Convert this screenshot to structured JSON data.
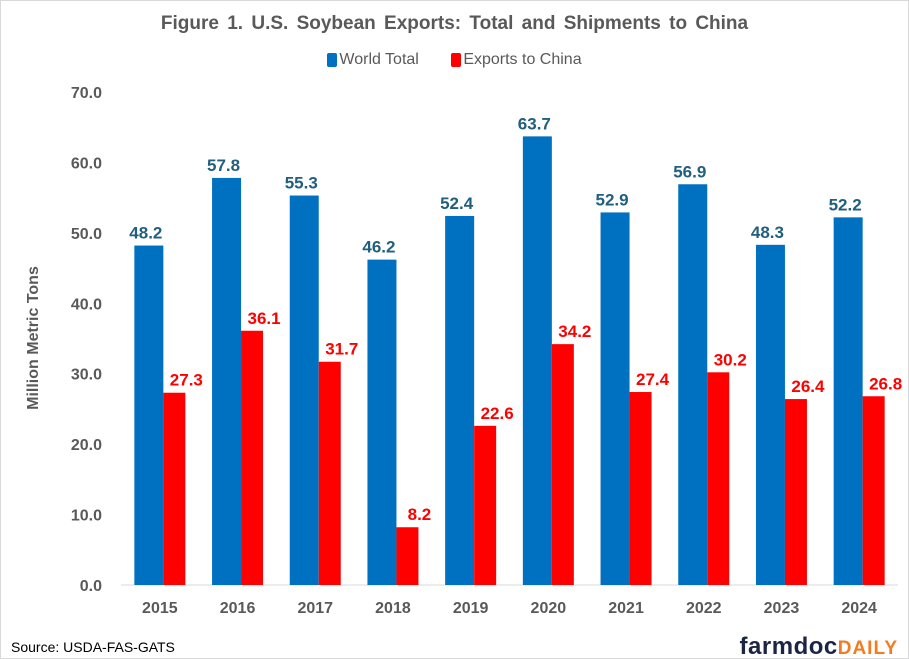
{
  "chart_data": {
    "type": "bar",
    "title": "Figure 1. U.S. Soybean Exports: Total and Shipments to China",
    "ylabel": "Million Metric Tons",
    "xlabel": "",
    "categories": [
      "2015",
      "2016",
      "2017",
      "2018",
      "2019",
      "2020",
      "2021",
      "2022",
      "2023",
      "2024"
    ],
    "series": [
      {
        "name": "World Total",
        "color": "#0070C0",
        "label_color": "#215F7E",
        "values": [
          48.2,
          57.8,
          55.3,
          46.2,
          52.4,
          63.7,
          52.9,
          56.9,
          48.3,
          52.2
        ]
      },
      {
        "name": "Exports to China",
        "color": "#FF0000",
        "label_color": "#FF0000",
        "values": [
          27.3,
          36.1,
          31.7,
          8.2,
          22.6,
          34.2,
          27.4,
          30.2,
          26.4,
          26.8
        ]
      }
    ],
    "ylim": [
      0,
      70
    ],
    "yticks": [
      "0.0",
      "10.0",
      "20.0",
      "30.0",
      "40.0",
      "50.0",
      "60.0",
      "70.0"
    ],
    "grid": false,
    "legend": "top"
  },
  "footer": {
    "source": "Source: USDA-FAS-GATS",
    "logo_main": "farmdoc",
    "logo_accent": "DAILY"
  }
}
